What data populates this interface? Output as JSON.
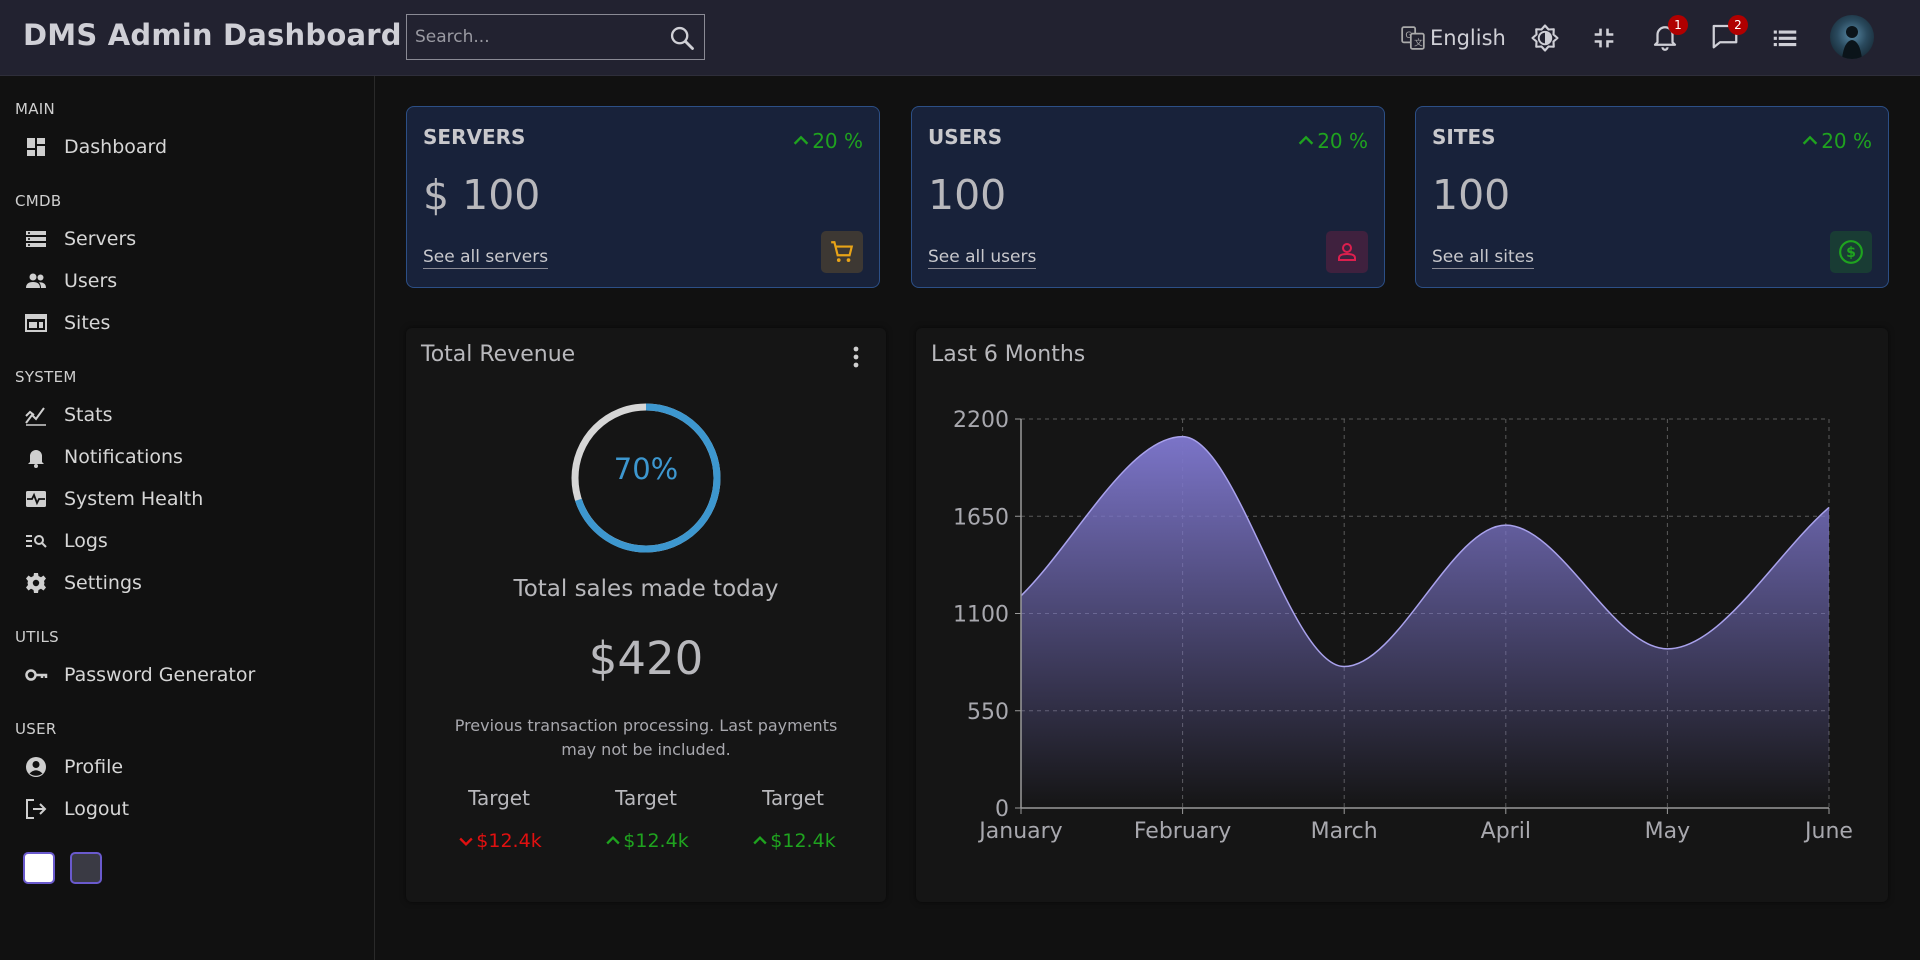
{
  "header": {
    "title": "DMS Admin Dashboard",
    "search_placeholder": "Search...",
    "language": "English",
    "notifications_count": "1",
    "messages_count": "2"
  },
  "sidebar": {
    "sections": {
      "main": "MAIN",
      "cmdb": "CMDB",
      "system": "SYSTEM",
      "utils": "UTILS",
      "user": "USER"
    },
    "items": {
      "dashboard": "Dashboard",
      "servers": "Servers",
      "users": "Users",
      "sites": "Sites",
      "stats": "Stats",
      "notifications": "Notifications",
      "system_health": "System Health",
      "logs": "Logs",
      "settings": "Settings",
      "password_generator": "Password Generator",
      "profile": "Profile",
      "logout": "Logout"
    },
    "theme_swatches": [
      "#ffffff",
      "#3a3a44"
    ]
  },
  "cards": [
    {
      "title": "SERVERS",
      "percent": "20 %",
      "value": "$ 100",
      "link": "See all servers",
      "icon": "cart-icon",
      "icon_color": "#e8a317"
    },
    {
      "title": "USERS",
      "percent": "20 %",
      "value": "100",
      "link": "See all users",
      "icon": "person-icon",
      "icon_color": "#dc1f4e"
    },
    {
      "title": "SITES",
      "percent": "20 %",
      "value": "100",
      "link": "See all sites",
      "icon": "dollar-icon",
      "icon_color": "#1fa31f"
    }
  ],
  "revenue": {
    "title": "Total Revenue",
    "percent": 70,
    "percent_label": "70%",
    "subtitle": "Total sales made today",
    "amount": "$420",
    "note": "Previous transaction processing. Last payments may not be included.",
    "targets": [
      {
        "label": "Target",
        "value": "$12.4k",
        "trend": "down"
      },
      {
        "label": "Target",
        "value": "$12.4k",
        "trend": "up"
      },
      {
        "label": "Target",
        "value": "$12.4k",
        "trend": "up"
      }
    ]
  },
  "chart_data": {
    "type": "area",
    "title": "Last 6 Months",
    "categories": [
      "January",
      "February",
      "March",
      "April",
      "May",
      "June"
    ],
    "values": [
      1200,
      2100,
      800,
      1600,
      900,
      1700
    ],
    "ylim": [
      0,
      2200
    ],
    "yticks": [
      0,
      550,
      1100,
      1650,
      2200
    ],
    "grid": true,
    "fill_color": "#7b74c8"
  }
}
